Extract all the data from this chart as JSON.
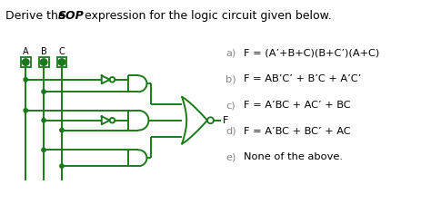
{
  "options": [
    [
      "a)",
      "F = (A’+B+C)(B+C’)(A+C)"
    ],
    [
      "b)",
      "F = AB’C’ + B’C + A’C’"
    ],
    [
      "c)",
      "F = A’BC + AC’ + BC"
    ],
    [
      "d)",
      "F = A’BC + BC’ + AC"
    ],
    [
      "e)",
      "None of the above."
    ]
  ],
  "gate_color": "#1a7a1a",
  "bg_color": "#ffffff",
  "text_color": "#000000",
  "label_color": "#888888",
  "input_labels": [
    "A",
    "B",
    "C"
  ],
  "title_pre": "Derive the ",
  "title_italic": "SOP",
  "title_post": " expression for the logic circuit given below."
}
